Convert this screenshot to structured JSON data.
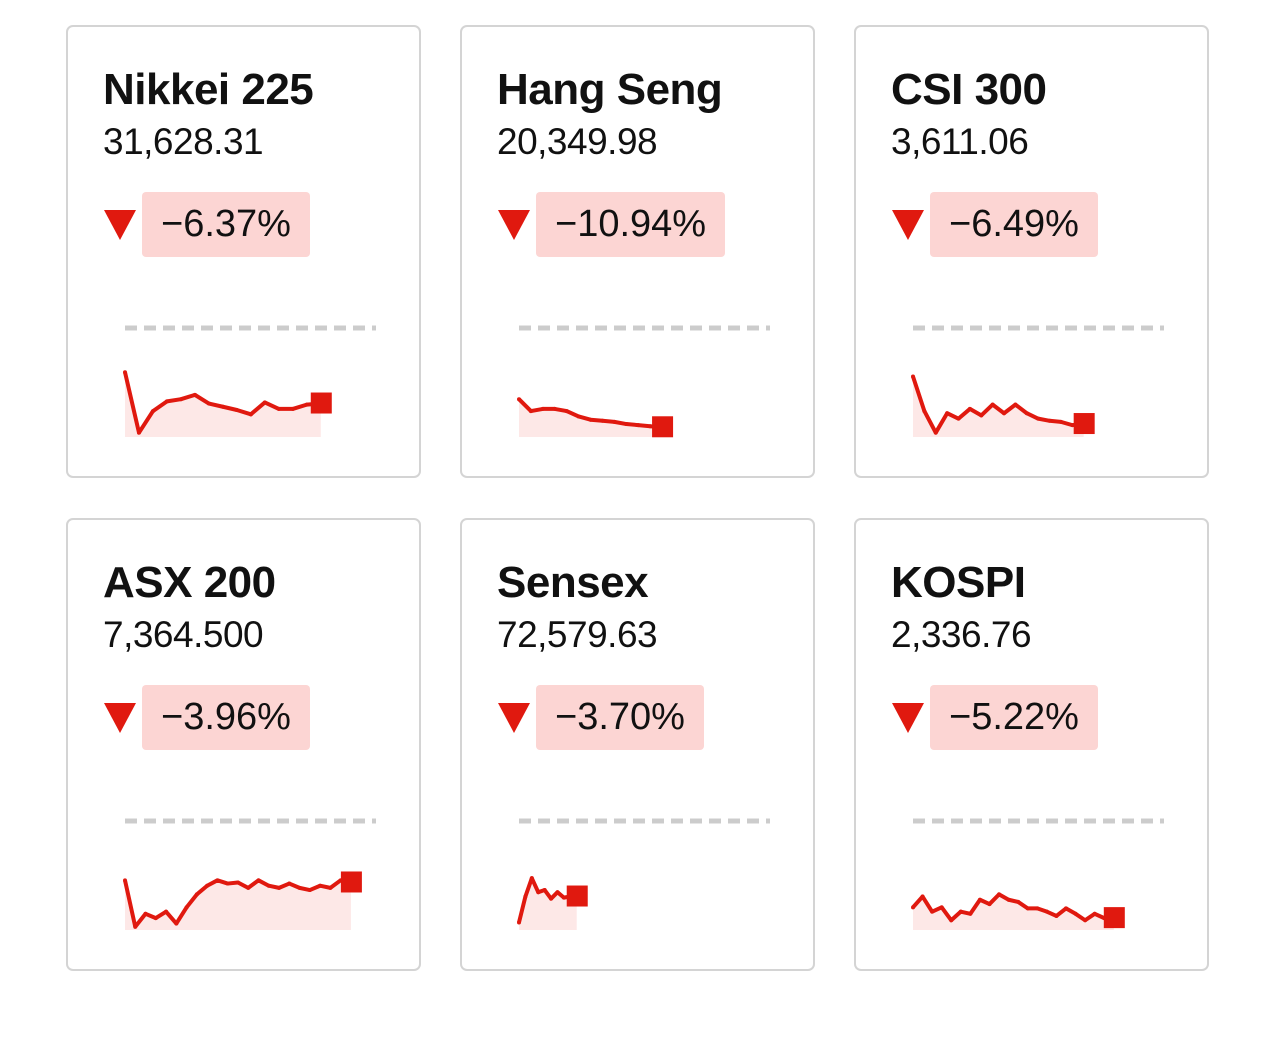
{
  "colors": {
    "down": "#e0190f",
    "badge_bg": "#fcd5d3",
    "fill": "#fde8e7",
    "baseline": "#cccccc"
  },
  "chart_data": [
    {
      "type": "line",
      "title": "Nikkei 225",
      "value": "31,628.31",
      "change": "−6.37%",
      "direction": "down",
      "session_elapsed": 0.78,
      "values": [
        60,
        4,
        24,
        33,
        35,
        39,
        31,
        28,
        25,
        21,
        32,
        26,
        26,
        30,
        31
      ]
    },
    {
      "type": "line",
      "title": "Hang Seng",
      "value": "20,349.98",
      "change": "−10.94%",
      "direction": "down",
      "session_elapsed": 0.57,
      "values": [
        35,
        24,
        26,
        26,
        24,
        19,
        16,
        15,
        14,
        12,
        11,
        10,
        9
      ]
    },
    {
      "type": "line",
      "title": "CSI 300",
      "value": "3,611.06",
      "change": "−6.49%",
      "direction": "down",
      "session_elapsed": 0.68,
      "values": [
        56,
        24,
        4,
        22,
        17,
        26,
        20,
        30,
        22,
        30,
        22,
        17,
        15,
        14,
        11,
        12
      ]
    },
    {
      "type": "line",
      "title": "ASX 200",
      "value": "7,364.500",
      "change": "−3.96%",
      "direction": "down",
      "session_elapsed": 0.9,
      "values": [
        46,
        3,
        15,
        11,
        17,
        6,
        21,
        33,
        41,
        46,
        43,
        44,
        39,
        46,
        41,
        39,
        43,
        39,
        37,
        41,
        39,
        46,
        44
      ]
    },
    {
      "type": "line",
      "title": "Sensex",
      "value": "72,579.63",
      "change": "−3.70%",
      "direction": "down",
      "session_elapsed": 0.23,
      "values": [
        7,
        31,
        48,
        35,
        37,
        29,
        35,
        30,
        31,
        31
      ]
    },
    {
      "type": "line",
      "title": "KOSPI",
      "value": "2,336.76",
      "change": "−5.22%",
      "direction": "down",
      "session_elapsed": 0.8,
      "values": [
        21,
        31,
        17,
        21,
        9,
        17,
        15,
        28,
        24,
        33,
        28,
        26,
        20,
        20,
        17,
        13,
        20,
        15,
        9,
        15,
        11,
        11
      ]
    }
  ]
}
